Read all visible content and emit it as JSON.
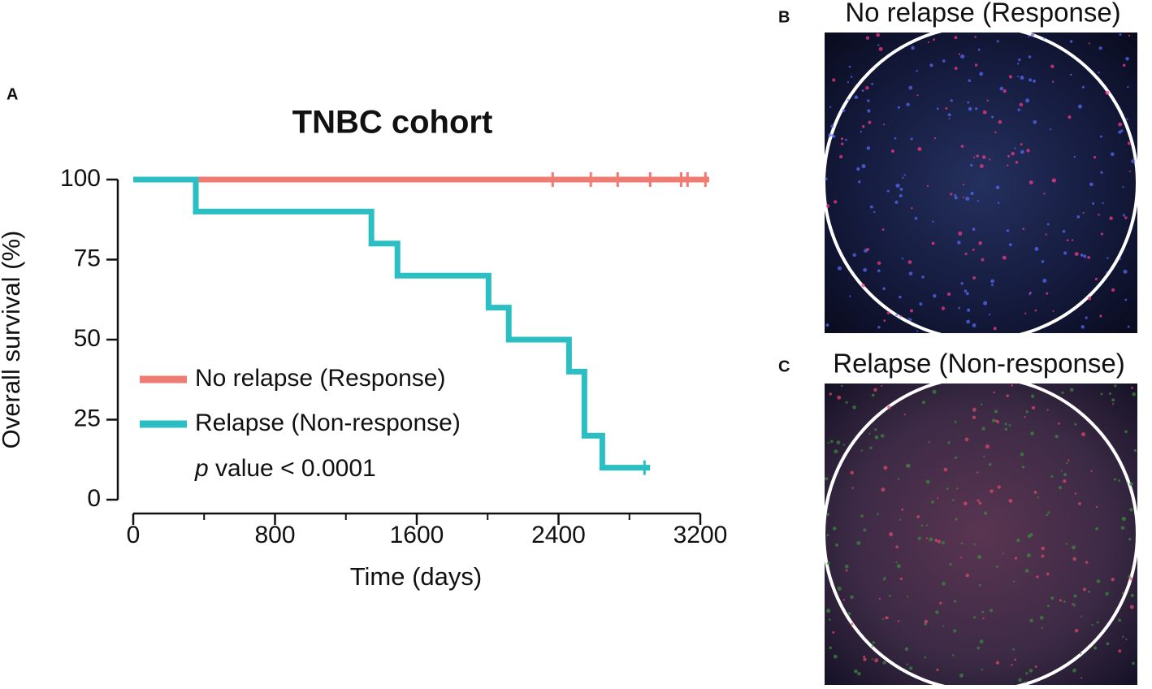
{
  "chart_data": {
    "type": "step",
    "panel_label": "A",
    "title": "TNBC cohort",
    "xlabel": "Time (days)",
    "ylabel": "Overall survival (%)",
    "xlim": [
      0,
      3200
    ],
    "xticks": [
      0,
      800,
      1600,
      2400,
      3200
    ],
    "xminorticks": [
      400,
      1200,
      2000,
      2800
    ],
    "ylim": [
      0,
      100
    ],
    "yticks": [
      0,
      25,
      50,
      75,
      100
    ],
    "series": [
      {
        "name": "No relapse (Response)",
        "color": "#f07b72",
        "x": [
          0,
          3250
        ],
        "values": [
          100,
          100
        ],
        "censor_x": [
          2367,
          2582,
          2734,
          2917,
          3092,
          3128,
          3229
        ],
        "censor_values": [
          100,
          100,
          100,
          100,
          100,
          100,
          100
        ]
      },
      {
        "name": "Relapse (Non-response)",
        "color": "#2bbfc4",
        "x": [
          0,
          353,
          1344,
          1491,
          2005,
          2119,
          2459,
          2546,
          2647,
          2917
        ],
        "values": [
          100,
          90,
          80,
          70,
          60,
          50,
          40,
          20,
          10,
          10
        ],
        "censor_x": [
          2885
        ],
        "censor_values": [
          10
        ]
      }
    ],
    "annotation_italic": "p",
    "annotation": " value < 0.0001"
  },
  "images": [
    {
      "panel_label": "B",
      "title": "No relapse (Response)"
    },
    {
      "panel_label": "C",
      "title": "Relapse (Non-response)"
    }
  ]
}
